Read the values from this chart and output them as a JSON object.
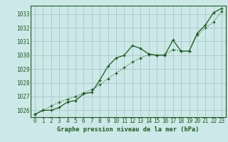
{
  "title": "Graphe pression niveau de la mer (hPa)",
  "background_color": "#cde8e8",
  "grid_color": "#aacccc",
  "line_color": "#1a5c1a",
  "xlim": [
    -0.5,
    23.5
  ],
  "ylim": [
    1025.5,
    1033.6
  ],
  "yticks": [
    1026,
    1027,
    1028,
    1029,
    1030,
    1031,
    1032,
    1033
  ],
  "xticks": [
    0,
    1,
    2,
    3,
    4,
    5,
    6,
    7,
    8,
    9,
    10,
    11,
    12,
    13,
    14,
    15,
    16,
    17,
    18,
    19,
    20,
    21,
    22,
    23
  ],
  "line1_x": [
    0,
    1,
    2,
    3,
    4,
    5,
    6,
    7,
    8,
    9,
    10,
    11,
    12,
    13,
    14,
    15,
    16,
    17,
    18,
    19,
    20,
    21,
    22,
    23
  ],
  "line1_y": [
    1025.7,
    1026.0,
    1026.0,
    1026.2,
    1026.6,
    1026.7,
    1027.2,
    1027.3,
    1028.2,
    1029.2,
    1029.8,
    1030.0,
    1030.7,
    1030.5,
    1030.1,
    1030.0,
    1030.0,
    1031.1,
    1030.3,
    1030.3,
    1031.6,
    1032.2,
    1033.1,
    1033.4
  ],
  "line2_x": [
    0,
    1,
    2,
    3,
    4,
    5,
    6,
    7,
    8,
    9,
    10,
    11,
    12,
    13,
    14,
    15,
    16,
    17,
    18,
    19,
    20,
    21,
    22,
    23
  ],
  "line2_y": [
    1025.7,
    1026.0,
    1026.3,
    1026.6,
    1026.8,
    1027.0,
    1027.25,
    1027.5,
    1027.85,
    1028.3,
    1028.7,
    1029.1,
    1029.5,
    1029.8,
    1030.05,
    1030.0,
    1030.05,
    1030.4,
    1030.3,
    1030.3,
    1031.5,
    1032.0,
    1032.4,
    1033.2
  ]
}
